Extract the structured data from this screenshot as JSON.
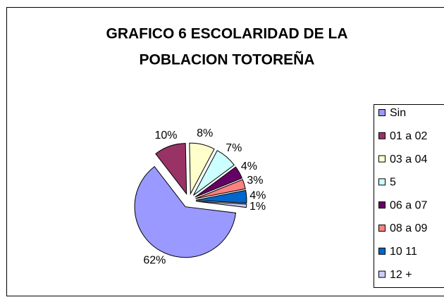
{
  "chart_data": {
    "type": "pie",
    "title": [
      "GRAFICO 6 ESCOLARIDAD DE LA",
      "POBLACION TOTOREÑA"
    ],
    "categories": [
      "Sin",
      "01 a 02",
      "03 a 04",
      "5",
      "06 a 07",
      "08 a 09",
      "10 11",
      "12 +"
    ],
    "values": [
      62,
      10,
      8,
      7,
      4,
      3,
      4,
      1
    ],
    "value_labels": [
      "62%",
      "10%",
      "8%",
      "7%",
      "4%",
      "3%",
      "4%",
      "1%"
    ],
    "colors": [
      "#9999ff",
      "#993366",
      "#ffffcc",
      "#ccffff",
      "#660066",
      "#ff8080",
      "#0066cc",
      "#ccccff"
    ],
    "legend": "right"
  }
}
